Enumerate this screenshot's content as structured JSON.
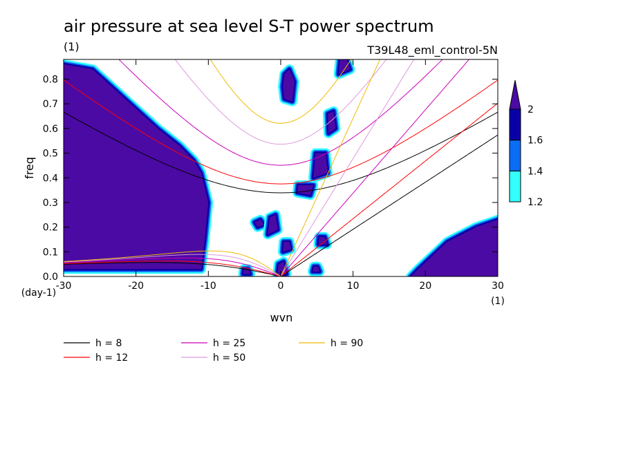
{
  "chart_data": {
    "type": "heatmap",
    "title": "air pressure at sea level S-T power spectrum",
    "units_label": "(1)",
    "run_label": "T39L48_eml_control-5N",
    "xlabel": "wvn",
    "ylabel": "freq",
    "x_units_label": "(1)",
    "y_units_label": "(day-1)",
    "xlim": [
      -30,
      30
    ],
    "ylim": [
      0,
      0.88
    ],
    "x_ticks": [
      -30,
      -20,
      -10,
      0,
      10,
      20,
      30
    ],
    "x_tick_labels": [
      "-30",
      "-20",
      "-10",
      "0",
      "10",
      "20",
      "30"
    ],
    "y_ticks": [
      0,
      0.1,
      0.2,
      0.3,
      0.4,
      0.5,
      0.6,
      0.7,
      0.8
    ],
    "y_tick_labels": [
      "0.0",
      "0.1",
      "0.2",
      "0.3",
      "0.4",
      "0.5",
      "0.6",
      "0.7",
      "0.8"
    ],
    "colorbar": {
      "levels": [
        1.2,
        1.4,
        1.6,
        2
      ],
      "level_labels": [
        "1.2",
        "1.4",
        "1.6",
        "2"
      ],
      "colors": [
        "#33ffff",
        "#0b6df5",
        "#0a00a8",
        "#4b0aa3"
      ]
    },
    "fill_regions": [
      {
        "name": "west-low-wavenumber",
        "level": 2,
        "x": [
          -30,
          -26,
          -23,
          -20,
          -17,
          -14,
          -12,
          -11,
          -10,
          -10.5,
          -11,
          -30
        ],
        "y": [
          0.86,
          0.84,
          0.76,
          0.68,
          0.6,
          0.53,
          0.47,
          0.42,
          0.3,
          0.15,
          0.03,
          0.03
        ]
      },
      {
        "name": "east-high-wavenumber",
        "level": 2,
        "x": [
          19,
          23,
          27,
          30,
          30,
          18
        ],
        "y": [
          0.03,
          0.14,
          0.2,
          0.23,
          0.0,
          0.0
        ]
      },
      {
        "name": "blob-0-0.8",
        "level": 2,
        "x": [
          0.5,
          1.6,
          1.9,
          1.2,
          0.5,
          0.3
        ],
        "y": [
          0.72,
          0.71,
          0.79,
          0.84,
          0.82,
          0.77
        ]
      },
      {
        "name": "blob-neg3-0.2",
        "level": 2,
        "x": [
          -3.2,
          -2.3,
          -2.8,
          -3.6
        ],
        "y": [
          0.2,
          0.21,
          0.23,
          0.22
        ]
      },
      {
        "name": "blob-neg1-0.2",
        "level": 2,
        "x": [
          -1.8,
          -0.4,
          -0.7,
          -1.5
        ],
        "y": [
          0.17,
          0.19,
          0.25,
          0.24
        ]
      },
      {
        "name": "blob-1-0.1",
        "level": 2,
        "x": [
          0.3,
          1.4,
          1.2,
          0.4
        ],
        "y": [
          0.1,
          0.11,
          0.14,
          0.14
        ]
      },
      {
        "name": "blob-6-0.15",
        "level": 2,
        "x": [
          5.2,
          6.4,
          6.1,
          5.3
        ],
        "y": [
          0.13,
          0.13,
          0.16,
          0.16
        ]
      },
      {
        "name": "blob-3-0.35",
        "level": 2,
        "x": [
          2.3,
          4.1,
          4.5,
          2.4
        ],
        "y": [
          0.34,
          0.33,
          0.37,
          0.37
        ]
      },
      {
        "name": "blob-5-0.45",
        "level": 2,
        "x": [
          4.5,
          6.5,
          6.2,
          4.8
        ],
        "y": [
          0.4,
          0.42,
          0.5,
          0.5
        ]
      },
      {
        "name": "blob-7-0.6",
        "level": 2,
        "x": [
          6.6,
          7.6,
          7.3,
          6.5
        ],
        "y": [
          0.58,
          0.6,
          0.67,
          0.66
        ]
      },
      {
        "name": "blob-9-0.85",
        "level": 2,
        "x": [
          8,
          9.6,
          9.1,
          8.2
        ],
        "y": [
          0.82,
          0.84,
          0.88,
          0.88
        ]
      },
      {
        "name": "blob-0-0.02",
        "level": 2,
        "x": [
          -0.5,
          0.8,
          0.4,
          -0.3
        ],
        "y": [
          0.0,
          0.01,
          0.06,
          0.05
        ]
      },
      {
        "name": "blob-5-0.02",
        "level": 2,
        "x": [
          4.4,
          5.4,
          5.1,
          4.6
        ],
        "y": [
          0.02,
          0.02,
          0.04,
          0.04
        ]
      },
      {
        "name": "blob-neg5-0.01",
        "level": 2,
        "x": [
          -5.2,
          -4.2,
          -4.5,
          -5.1
        ],
        "y": [
          0.01,
          0.01,
          0.03,
          0.03
        ]
      }
    ],
    "reference_curves": {
      "h_values": [
        8,
        12,
        25,
        50,
        90
      ],
      "colors": [
        "#000000",
        "#ff0000",
        "#cc00bb",
        "#dd99dd",
        "#eebb00"
      ]
    },
    "legend": [
      {
        "label": "h =  8",
        "color": "#000000"
      },
      {
        "label": "h = 12",
        "color": "#ff0000"
      },
      {
        "label": "h = 25",
        "color": "#cc00bb"
      },
      {
        "label": "h = 50",
        "color": "#dd99dd"
      },
      {
        "label": "h = 90",
        "color": "#eebb00"
      }
    ]
  }
}
